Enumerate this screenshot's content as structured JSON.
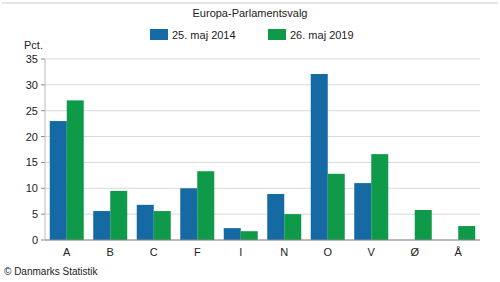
{
  "chart_data": {
    "type": "bar",
    "title": "Europa-Parlamentsvalg",
    "y_label": "Pct.",
    "source": "© Danmarks Statistik",
    "categories": [
      "A",
      "B",
      "C",
      "F",
      "I",
      "N",
      "O",
      "V",
      "Ø",
      "Å"
    ],
    "series": [
      {
        "name": "25. maj 2014",
        "color": "#166aa3",
        "values": [
          23.0,
          5.6,
          6.8,
          10.0,
          2.3,
          8.9,
          32.1,
          11.0,
          null,
          null
        ]
      },
      {
        "name": "26. maj 2019",
        "color": "#0e9a48",
        "values": [
          27.0,
          9.5,
          5.6,
          13.3,
          1.7,
          5.0,
          12.8,
          16.6,
          5.8,
          2.7
        ]
      }
    ],
    "ylim": [
      0,
      35
    ],
    "yticks": [
      0,
      5,
      10,
      15,
      20,
      25,
      30,
      35
    ],
    "grid": true,
    "legend": "top"
  }
}
